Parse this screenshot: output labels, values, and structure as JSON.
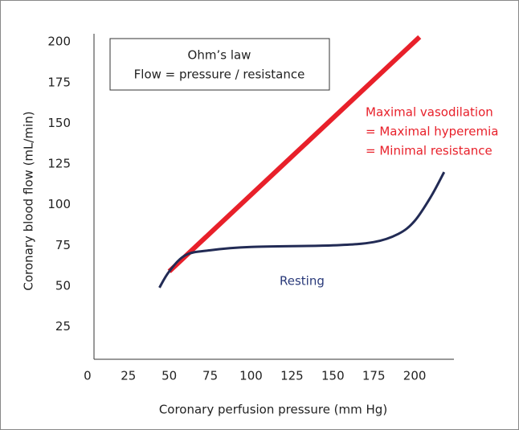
{
  "chart_data": {
    "type": "line",
    "ylabel": "Coronary blood flow (mL/min)",
    "xlabel": "Coronary perfusion pressure (mm Hg)",
    "box_text": [
      "Ohm’s law",
      "Flow = pressure / resistance"
    ],
    "annotations": [
      {
        "lines": [
          "Maximal vasodilation",
          "= Maximal hyperemia",
          "= Minimal resistance"
        ],
        "color": "#e8202a"
      },
      {
        "lines": [
          "Resting"
        ],
        "color": "#2a3a7a"
      }
    ],
    "xlim": [
      4,
      224
    ],
    "xticks": [
      0,
      25,
      50,
      75,
      100,
      125,
      150,
      175,
      200
    ],
    "ylim": [
      5,
      205
    ],
    "yticks": [
      25,
      50,
      75,
      100,
      125,
      150,
      175,
      200
    ],
    "series": [
      {
        "color": "#e8202a",
        "width": 6,
        "x": [
          50,
          203
        ],
        "values": [
          59,
          203
        ]
      },
      {
        "color": "#222b55",
        "width": 3,
        "x": [
          44,
          50,
          60,
          75,
          100,
          150,
          175,
          190,
          200,
          210,
          218
        ],
        "values": [
          49,
          59,
          69,
          72,
          74,
          75,
          77,
          82,
          90,
          105,
          120
        ]
      }
    ]
  }
}
